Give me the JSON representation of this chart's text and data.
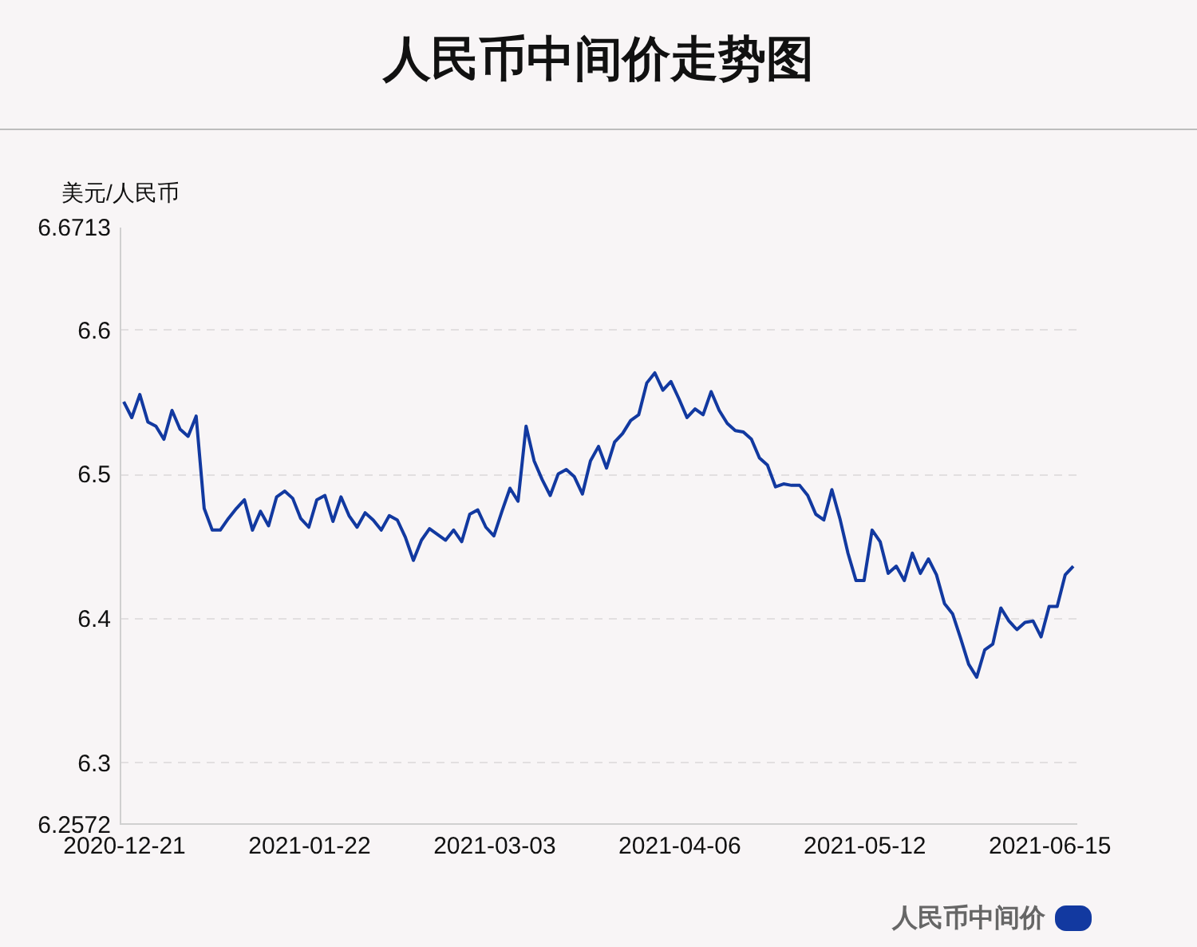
{
  "chart_data": {
    "type": "line",
    "title": "人民币中间价走势图",
    "ylabel": "美元/人民币",
    "categories": [
      "2020-12-21",
      null,
      null,
      null,
      null,
      null,
      null,
      null,
      null,
      null,
      null,
      null,
      null,
      null,
      null,
      null,
      null,
      null,
      null,
      null,
      null,
      null,
      null,
      "2021-01-22",
      null,
      null,
      null,
      null,
      null,
      null,
      null,
      null,
      null,
      null,
      null,
      null,
      null,
      null,
      null,
      null,
      null,
      null,
      null,
      null,
      null,
      null,
      "2021-03-03",
      null,
      null,
      null,
      null,
      null,
      null,
      null,
      null,
      null,
      null,
      null,
      null,
      null,
      null,
      null,
      null,
      null,
      null,
      null,
      null,
      null,
      null,
      "2021-04-06",
      null,
      null,
      null,
      null,
      null,
      null,
      null,
      null,
      null,
      null,
      null,
      null,
      null,
      null,
      null,
      null,
      null,
      null,
      null,
      null,
      null,
      null,
      "2021-05-12",
      null,
      null,
      null,
      null,
      null,
      null,
      null,
      null,
      null,
      null,
      null,
      null,
      null,
      null,
      null,
      null,
      null,
      null,
      null,
      null,
      null,
      null,
      "2021-06-15",
      null,
      null,
      null
    ],
    "series": [
      {
        "name": "人民币中间价",
        "color": "#1239a0",
        "values": [
          6.55,
          6.539,
          6.555,
          6.536,
          6.533,
          6.524,
          6.544,
          6.531,
          6.526,
          6.54,
          6.476,
          6.461,
          6.461,
          6.469,
          6.476,
          6.482,
          6.461,
          6.474,
          6.464,
          6.484,
          6.488,
          6.483,
          6.469,
          6.463,
          6.482,
          6.485,
          6.467,
          6.484,
          6.471,
          6.463,
          6.473,
          6.468,
          6.461,
          6.471,
          6.468,
          6.456,
          6.44,
          6.454,
          6.462,
          6.458,
          6.454,
          6.461,
          6.453,
          6.472,
          6.475,
          6.463,
          6.457,
          6.474,
          6.49,
          6.481,
          6.533,
          6.509,
          6.496,
          6.485,
          6.5,
          6.503,
          6.498,
          6.486,
          6.509,
          6.519,
          6.504,
          6.522,
          6.528,
          6.537,
          6.541,
          6.563,
          6.57,
          6.558,
          6.564,
          6.552,
          6.539,
          6.545,
          6.541,
          6.557,
          6.544,
          6.535,
          6.53,
          6.529,
          6.524,
          6.511,
          6.506,
          6.491,
          6.493,
          6.492,
          6.492,
          6.485,
          6.472,
          6.468,
          6.489,
          6.469,
          6.445,
          6.426,
          6.426,
          6.461,
          6.453,
          6.431,
          6.436,
          6.426,
          6.445,
          6.431,
          6.441,
          6.43,
          6.41,
          6.403,
          6.386,
          6.368,
          6.359,
          6.378,
          6.382,
          6.407,
          6.398,
          6.392,
          6.397,
          6.398,
          6.387,
          6.408,
          6.408,
          6.43,
          6.436
        ]
      }
    ],
    "ylim": [
      6.2572,
      6.6713
    ],
    "yticks": [
      6.2572,
      6.3,
      6.4,
      6.5,
      6.6,
      6.6713
    ],
    "grid": "y",
    "legend": "bottom right",
    "marker": "none",
    "line_style": "solid"
  }
}
